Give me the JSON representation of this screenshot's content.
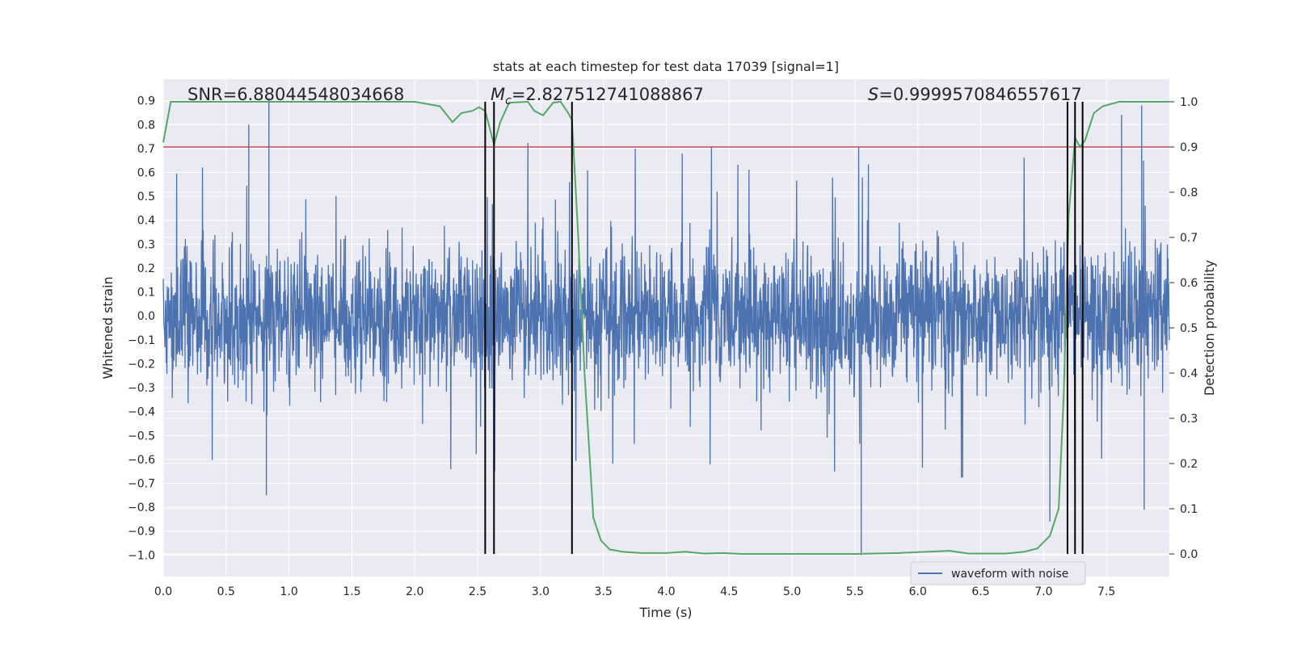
{
  "chart_data": {
    "type": "line",
    "title": "stats at each timestep for test data 17039 [signal=1]",
    "xlabel": "Time (s)",
    "ylabel_left": "Whitened strain",
    "ylabel_right": "Detection probability",
    "xlim": [
      0.0,
      8.0
    ],
    "ylim_left": [
      -1.09,
      0.99
    ],
    "ylim_right": [
      -0.05,
      1.05
    ],
    "x_ticks": [
      "0.0",
      "0.5",
      "1.0",
      "1.5",
      "2.0",
      "2.5",
      "3.0",
      "3.5",
      "4.0",
      "4.5",
      "5.0",
      "5.5",
      "6.0",
      "6.5",
      "7.0",
      "7.5"
    ],
    "y_ticks_left": [
      "0.9",
      "0.8",
      "0.7",
      "0.6",
      "0.5",
      "0.4",
      "0.3",
      "0.2",
      "0.1",
      "0.0",
      "−0.1",
      "−0.2",
      "−0.3",
      "−0.4",
      "−0.5",
      "−0.6",
      "−0.7",
      "−0.8",
      "−0.9",
      "−1.0"
    ],
    "y_ticks_right": [
      "1.0",
      "0.9",
      "0.8",
      "0.7",
      "0.6",
      "0.5",
      "0.4",
      "0.3",
      "0.2",
      "0.1",
      "0.0"
    ],
    "grid": true,
    "legend_position": "bottom-right",
    "annotations": {
      "snr": "SNR=6.88044548034668",
      "mc_symbol": "M",
      "mc_sub": "c",
      "mc_value": "=2.827512741088867",
      "s_symbol": "S",
      "s_value": "=0.9999570846557617"
    },
    "threshold": {
      "value_right": 0.9,
      "color": "#c44e52"
    },
    "vertical_lines": [
      2.56,
      2.63,
      3.25,
      7.19,
      7.25,
      7.31
    ],
    "series": [
      {
        "name": "waveform with noise",
        "axis": "left",
        "color": "#4c72b0",
        "duration_s": 8.0,
        "typical_amplitude": 0.38,
        "notable_peaks": [
          {
            "t": 0.68,
            "v": 0.8
          },
          {
            "t": 0.84,
            "v": 0.91
          },
          {
            "t": 0.82,
            "v": -0.75
          },
          {
            "t": 7.62,
            "v": 0.84
          },
          {
            "t": 7.78,
            "v": 0.88
          },
          {
            "t": 5.55,
            "v": -1.0
          },
          {
            "t": 7.05,
            "v": -0.86
          },
          {
            "t": 3.25,
            "v": -0.8
          },
          {
            "t": 7.8,
            "v": -0.81
          }
        ]
      },
      {
        "name": "Detection probability",
        "axis": "right",
        "color": "#55a868",
        "points": [
          [
            0.0,
            0.91
          ],
          [
            0.06,
            1.0
          ],
          [
            0.5,
            1.0
          ],
          [
            1.0,
            1.0
          ],
          [
            1.5,
            1.0
          ],
          [
            2.0,
            1.0
          ],
          [
            2.2,
            0.99
          ],
          [
            2.3,
            0.955
          ],
          [
            2.37,
            0.975
          ],
          [
            2.46,
            0.98
          ],
          [
            2.51,
            0.988
          ],
          [
            2.56,
            0.98
          ],
          [
            2.63,
            0.905
          ],
          [
            2.68,
            0.955
          ],
          [
            2.75,
            0.998
          ],
          [
            2.9,
            1.0
          ],
          [
            2.95,
            0.98
          ],
          [
            3.02,
            0.97
          ],
          [
            3.1,
            0.998
          ],
          [
            3.16,
            1.0
          ],
          [
            3.22,
            0.975
          ],
          [
            3.25,
            0.96
          ],
          [
            3.3,
            0.7
          ],
          [
            3.35,
            0.4
          ],
          [
            3.42,
            0.08
          ],
          [
            3.48,
            0.03
          ],
          [
            3.55,
            0.01
          ],
          [
            3.65,
            0.005
          ],
          [
            3.8,
            0.002
          ],
          [
            4.0,
            0.002
          ],
          [
            4.15,
            0.005
          ],
          [
            4.3,
            0.001
          ],
          [
            4.45,
            0.002
          ],
          [
            4.6,
            0.0
          ],
          [
            5.0,
            0.0
          ],
          [
            5.5,
            0.0
          ],
          [
            5.85,
            0.002
          ],
          [
            6.0,
            0.004
          ],
          [
            6.25,
            0.007
          ],
          [
            6.4,
            0.001
          ],
          [
            6.7,
            0.001
          ],
          [
            6.85,
            0.005
          ],
          [
            6.95,
            0.012
          ],
          [
            7.05,
            0.04
          ],
          [
            7.12,
            0.1
          ],
          [
            7.16,
            0.35
          ],
          [
            7.2,
            0.75
          ],
          [
            7.25,
            0.92
          ],
          [
            7.29,
            0.9
          ],
          [
            7.33,
            0.915
          ],
          [
            7.4,
            0.975
          ],
          [
            7.47,
            0.99
          ],
          [
            7.6,
            1.0
          ],
          [
            8.0,
            1.0
          ]
        ]
      }
    ]
  }
}
